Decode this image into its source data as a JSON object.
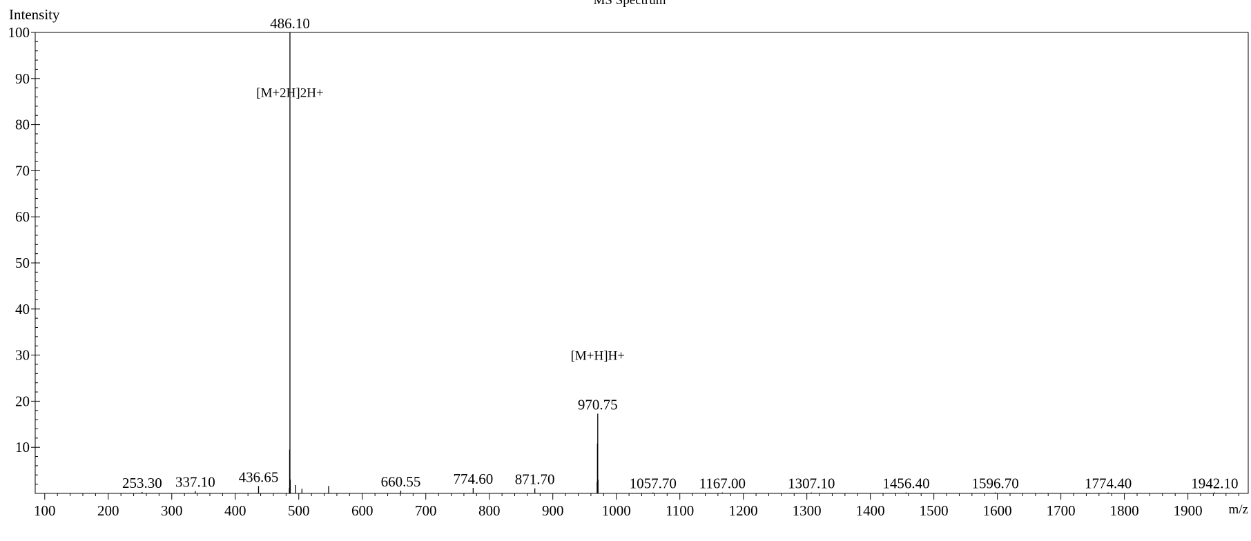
{
  "chart_data": {
    "type": "bar",
    "title": "MS Spectrum",
    "xlabel": "m/z",
    "ylabel": "Intensity",
    "xlim": [
      85,
      1995
    ],
    "ylim": [
      0,
      100
    ],
    "grid": false,
    "x_ticks": [
      100,
      200,
      300,
      400,
      500,
      600,
      700,
      800,
      900,
      1000,
      1100,
      1200,
      1300,
      1400,
      1500,
      1600,
      1700,
      1800,
      1900
    ],
    "y_ticks": [
      10,
      20,
      30,
      40,
      50,
      60,
      70,
      80,
      90,
      100
    ],
    "peaks": [
      {
        "mz": 253.3,
        "intensity": 0.3
      },
      {
        "mz": 337.1,
        "intensity": 0.5
      },
      {
        "mz": 436.65,
        "intensity": 1.6
      },
      {
        "mz": 485.2,
        "intensity": 1.2
      },
      {
        "mz": 485.6,
        "intensity": 9.5
      },
      {
        "mz": 486.1,
        "intensity": 100
      },
      {
        "mz": 486.6,
        "intensity": 3.0
      },
      {
        "mz": 495.0,
        "intensity": 1.8
      },
      {
        "mz": 505.0,
        "intensity": 1.0
      },
      {
        "mz": 547.0,
        "intensity": 1.6
      },
      {
        "mz": 660.55,
        "intensity": 0.6
      },
      {
        "mz": 774.6,
        "intensity": 1.2
      },
      {
        "mz": 871.7,
        "intensity": 1.1
      },
      {
        "mz": 969.8,
        "intensity": 2.5
      },
      {
        "mz": 970.25,
        "intensity": 10.8
      },
      {
        "mz": 970.75,
        "intensity": 17.3
      },
      {
        "mz": 971.25,
        "intensity": 3.0
      },
      {
        "mz": 1057.7,
        "intensity": 0.2
      },
      {
        "mz": 1167.0,
        "intensity": 0.2
      },
      {
        "mz": 1307.1,
        "intensity": 0.2
      },
      {
        "mz": 1456.4,
        "intensity": 0.2
      },
      {
        "mz": 1596.7,
        "intensity": 0.2
      },
      {
        "mz": 1774.4,
        "intensity": 0.2
      },
      {
        "mz": 1942.1,
        "intensity": 0.2
      }
    ],
    "peak_labels": [
      {
        "mz": 253.3,
        "intensity": 0.3,
        "text": "253.30"
      },
      {
        "mz": 337.1,
        "intensity": 0.5,
        "text": "337.10"
      },
      {
        "mz": 436.65,
        "intensity": 1.6,
        "text": "436.65"
      },
      {
        "mz": 486.1,
        "intensity": 100,
        "text": "486.10"
      },
      {
        "mz": 660.55,
        "intensity": 0.6,
        "text": "660.55"
      },
      {
        "mz": 774.6,
        "intensity": 1.2,
        "text": "774.60"
      },
      {
        "mz": 871.7,
        "intensity": 1.1,
        "text": "871.70"
      },
      {
        "mz": 970.75,
        "intensity": 17.3,
        "text": "970.75"
      },
      {
        "mz": 1057.7,
        "intensity": 0.2,
        "text": "1057.70"
      },
      {
        "mz": 1167.0,
        "intensity": 0.2,
        "text": "1167.00"
      },
      {
        "mz": 1307.1,
        "intensity": 0.2,
        "text": "1307.10"
      },
      {
        "mz": 1456.4,
        "intensity": 0.2,
        "text": "1456.40"
      },
      {
        "mz": 1596.7,
        "intensity": 0.2,
        "text": "1596.70"
      },
      {
        "mz": 1774.4,
        "intensity": 0.2,
        "text": "1774.40"
      },
      {
        "mz": 1942.1,
        "intensity": 0.2,
        "text": "1942.10"
      }
    ],
    "annotations": [
      {
        "text": "[M+2H]2H+",
        "mz": 486.1,
        "intensity": 86
      },
      {
        "text": "[M+H]H+",
        "mz": 970.75,
        "intensity": 29
      }
    ]
  }
}
